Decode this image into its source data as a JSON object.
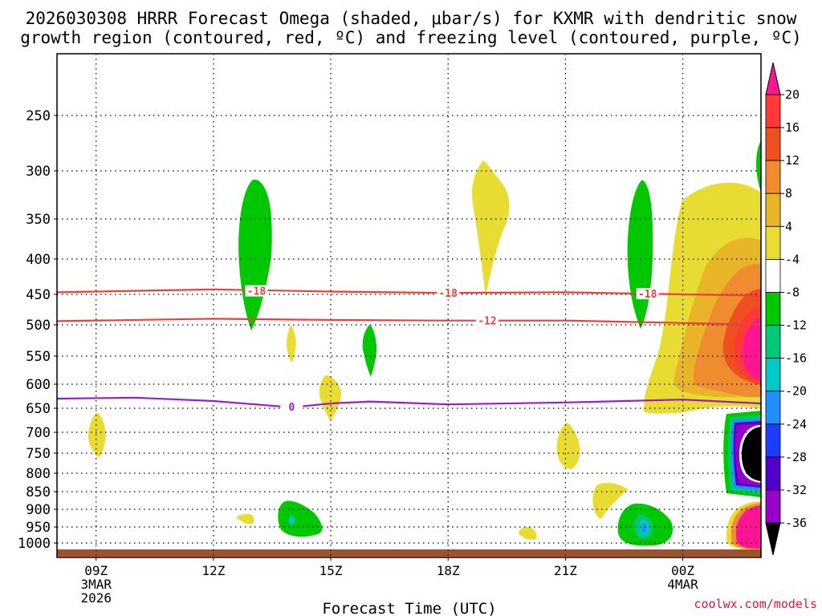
{
  "chart_data": {
    "type": "time-height contour",
    "title_line1": "2026030308 HRRR Forecast Omega (shaded, μbar/s) for KXMR with dendritic snow",
    "title_line2": "growth region (contoured, red, ºC) and freezing level (contoured, purple, ºC)",
    "xlabel": "Forecast Time (UTC)",
    "credit": "coolwx.com/models",
    "x_ticks": [
      {
        "hour": 9,
        "label": "09Z",
        "sub1": "3MAR",
        "sub2": "2026"
      },
      {
        "hour": 12,
        "label": "12Z"
      },
      {
        "hour": 15,
        "label": "15Z"
      },
      {
        "hour": 18,
        "label": "18Z"
      },
      {
        "hour": 21,
        "label": "21Z"
      },
      {
        "hour": 24,
        "label": "00Z",
        "sub1": "4MAR"
      }
    ],
    "x_range_hours": [
      8,
      26
    ],
    "y_ticks": [
      250,
      300,
      350,
      400,
      450,
      500,
      550,
      600,
      650,
      700,
      750,
      800,
      850,
      900,
      950,
      1000
    ],
    "colorbar": {
      "labels": [
        "20",
        "16",
        "12",
        "8",
        "4",
        "-4",
        "-8",
        "-12",
        "-16",
        "-20",
        "-24",
        "-28",
        "-32",
        "-36"
      ],
      "colors": [
        "#ff1493",
        "#ff3838",
        "#f05020",
        "#f08c30",
        "#e8b428",
        "#e8dc32",
        "#ffffff",
        "#00c800",
        "#00c878",
        "#00c8c8",
        "#1e90ff",
        "#1e3cff",
        "#5000c8",
        "#9600c8",
        "#aaaaaa",
        "#000000"
      ]
    },
    "contours": [
      {
        "name": "dgz -18C",
        "label": "-18",
        "color": "#e8413c",
        "points": [
          [
            8,
            447
          ],
          [
            12,
            443
          ],
          [
            15,
            446
          ],
          [
            18,
            448
          ],
          [
            21,
            447
          ],
          [
            24,
            450
          ],
          [
            26,
            452
          ]
        ]
      },
      {
        "name": "dgz -12C",
        "label": "-12",
        "color": "#e8413c",
        "points": [
          [
            8,
            494
          ],
          [
            12,
            490
          ],
          [
            15,
            492
          ],
          [
            18,
            493
          ],
          [
            21,
            493
          ],
          [
            24,
            497
          ],
          [
            26,
            500
          ]
        ]
      },
      {
        "name": "freezing level 0C",
        "label": "0",
        "color": "#9b1dc8",
        "points": [
          [
            8,
            630
          ],
          [
            10,
            628
          ],
          [
            12,
            635
          ],
          [
            14,
            648
          ],
          [
            15,
            640
          ],
          [
            16,
            636
          ],
          [
            18,
            642
          ],
          [
            21,
            638
          ],
          [
            24,
            632
          ],
          [
            26,
            640
          ]
        ]
      }
    ],
    "contour_labels": [
      {
        "text": "-18",
        "hour": 13.1,
        "p": 445
      },
      {
        "text": "-18",
        "hour": 18.0,
        "p": 448
      },
      {
        "text": "-18",
        "hour": 23.1,
        "p": 449
      },
      {
        "text": "-12",
        "hour": 19.0,
        "p": 493
      },
      {
        "text": "0",
        "hour": 14.0,
        "p": 647
      }
    ]
  }
}
